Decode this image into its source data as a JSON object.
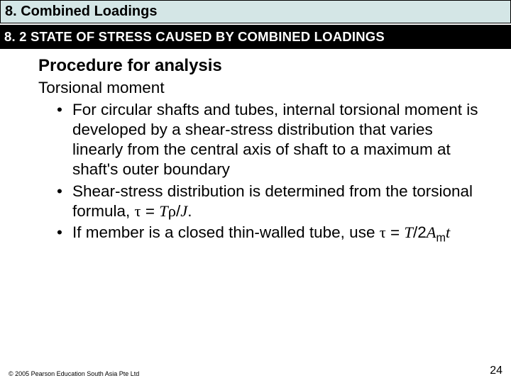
{
  "colors": {
    "chapter_bar_bg": "#d4e6e6",
    "section_bar_bg": "#000000",
    "section_bar_text": "#ffffff",
    "body_text": "#000000",
    "page_bg": "#ffffff"
  },
  "typography": {
    "chapter_fontsize": 20,
    "section_fontsize": 18.5,
    "heading_fontsize": 24,
    "body_fontsize": 22.5,
    "copyright_fontsize": 9,
    "pagenum_fontsize": 16,
    "font_family": "Arial"
  },
  "chapter": {
    "label": "8. Combined Loadings"
  },
  "section": {
    "label": "8. 2 STATE OF STRESS CAUSED BY COMBINED LOADINGS"
  },
  "content": {
    "heading": "Procedure for analysis",
    "subheading": "Torsional moment",
    "bullets": [
      {
        "text": "For circular shafts and tubes, internal torsional moment is developed by a shear-stress distribution that varies linearly from the central axis of shaft to a maximum at shaft's outer boundary"
      },
      {
        "prefix": "Shear-stress distribution is determined from the torsional formula, ",
        "formula_html": "<span class='sym'>&tau;</span> = <span class='ital'>T</span><span class='sym'>&rho;</span>/<span class='ital'>J</span>.",
        "text": ""
      },
      {
        "prefix": "If member is a closed thin-walled tube, use  ",
        "formula_html": "<span class='sym'>&tau;</span> = <span class='ital'>T</span>/2<span class='ital'>A</span><sub>m</sub><span class='ital'>t</span>",
        "text": ""
      }
    ]
  },
  "footer": {
    "copyright": "© 2005 Pearson Education South Asia Pte Ltd",
    "page_number": "24"
  }
}
